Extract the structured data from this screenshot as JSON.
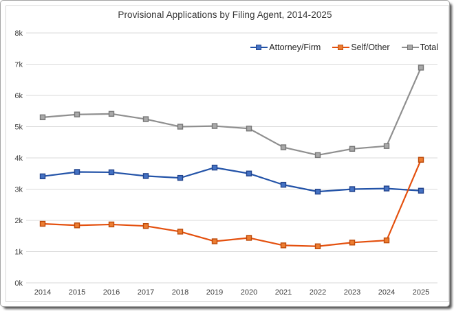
{
  "chart_data": {
    "type": "line",
    "title": "Provisional Applications by Filing Agent, 2014-2025",
    "categories": [
      "2014",
      "2015",
      "2016",
      "2017",
      "2018",
      "2019",
      "2020",
      "2021",
      "2022",
      "2023",
      "2024",
      "2025"
    ],
    "series": [
      {
        "name": "Attorney/Firm",
        "values": [
          3.41,
          3.55,
          3.54,
          3.42,
          3.36,
          3.69,
          3.5,
          3.14,
          2.92,
          3.0,
          3.02,
          2.95
        ],
        "line_color": "#2353a8",
        "marker_fill": "#4472c4",
        "marker_border": "#22438c"
      },
      {
        "name": "Self/Other",
        "values": [
          1.89,
          1.84,
          1.87,
          1.82,
          1.64,
          1.33,
          1.44,
          1.2,
          1.17,
          1.29,
          1.36,
          3.94
        ],
        "line_color": "#e4500e",
        "marker_fill": "#ed7d31",
        "marker_border": "#bc4a0a"
      },
      {
        "name": "Total",
        "values": [
          5.3,
          5.39,
          5.41,
          5.24,
          5.0,
          5.02,
          4.94,
          4.34,
          4.09,
          4.29,
          4.38,
          6.89
        ],
        "line_color": "#8f8f8f",
        "marker_fill": "#a9a9a9",
        "marker_border": "#777777"
      }
    ],
    "units": "thousands of applications",
    "ylim": [
      0,
      8
    ],
    "ytick_values": [
      0,
      1,
      2,
      3,
      4,
      5,
      6,
      7,
      8
    ],
    "ytick_labels": [
      "0k",
      "1k",
      "2k",
      "3k",
      "4k",
      "5k",
      "6k",
      "7k",
      "8k"
    ],
    "xlabel": "",
    "ylabel": "",
    "grid": "horizontal",
    "grid_color": "#d9d9d9",
    "axis_label_color": "#3d3d3d",
    "legend_position": "top-right"
  }
}
